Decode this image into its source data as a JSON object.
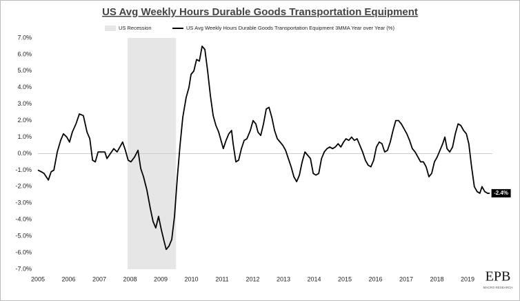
{
  "chart_data": {
    "type": "line",
    "title": "US Avg Weekly Hours Durable Goods Transportation Equipment",
    "x": [
      2005.0,
      2005.11,
      2005.2,
      2005.34,
      2005.43,
      2005.52,
      2005.63,
      2005.74,
      2005.83,
      2005.94,
      2006.03,
      2006.12,
      2006.24,
      2006.35,
      2006.48,
      2006.6,
      2006.69,
      2006.78,
      2006.87,
      2006.96,
      2007.09,
      2007.18,
      2007.25,
      2007.36,
      2007.47,
      2007.58,
      2007.7,
      2007.76,
      2007.85,
      2007.94,
      2008.03,
      2008.15,
      2008.26,
      2008.35,
      2008.44,
      2008.55,
      2008.66,
      2008.75,
      2008.84,
      2008.93,
      2009.02,
      2009.11,
      2009.18,
      2009.27,
      2009.36,
      2009.45,
      2009.54,
      2009.63,
      2009.72,
      2009.83,
      2009.92,
      2009.99,
      2010.08,
      2010.17,
      2010.26,
      2010.35,
      2010.44,
      2010.53,
      2010.62,
      2010.71,
      2010.8,
      2010.89,
      2010.98,
      2011.04,
      2011.13,
      2011.22,
      2011.31,
      2011.36,
      2011.45,
      2011.54,
      2011.63,
      2011.72,
      2011.81,
      2011.92,
      2012.01,
      2012.1,
      2012.17,
      2012.26,
      2012.35,
      2012.44,
      2012.53,
      2012.62,
      2012.71,
      2012.8,
      2012.89,
      2012.98,
      2013.07,
      2013.16,
      2013.25,
      2013.34,
      2013.43,
      2013.52,
      2013.61,
      2013.7,
      2013.79,
      2013.88,
      2013.97,
      2014.06,
      2014.15,
      2014.24,
      2014.33,
      2014.42,
      2014.51,
      2014.6,
      2014.69,
      2014.78,
      2014.87,
      2014.96,
      2015.04,
      2015.13,
      2015.22,
      2015.31,
      2015.4,
      2015.49,
      2015.58,
      2015.67,
      2015.76,
      2015.85,
      2015.94,
      2016.03,
      2016.12,
      2016.21,
      2016.3,
      2016.39,
      2016.48,
      2016.57,
      2016.66,
      2016.75,
      2016.84,
      2016.93,
      2017.02,
      2017.11,
      2017.2,
      2017.29,
      2017.38,
      2017.47,
      2017.56,
      2017.65,
      2017.74,
      2017.83,
      2017.92,
      2018.01,
      2018.1,
      2018.19,
      2018.26,
      2018.33,
      2018.42,
      2018.51,
      2018.6,
      2018.69,
      2018.78,
      2018.87,
      2018.96,
      2019.04,
      2019.13,
      2019.22,
      2019.31,
      2019.4,
      2019.47,
      2019.56,
      2019.65,
      2019.72
    ],
    "series": [
      {
        "name": "US Avg Weekly Hours Durable Goods Transportation Equipment 3MMA Year over Year (%)",
        "color": "#000000",
        "values": [
          -1.0,
          -1.1,
          -1.2,
          -1.6,
          -1.1,
          -1.0,
          0.1,
          0.8,
          1.2,
          1.0,
          0.7,
          1.3,
          1.8,
          2.4,
          2.3,
          1.3,
          0.9,
          -0.4,
          -0.5,
          0.1,
          0.1,
          0.1,
          -0.3,
          0.0,
          0.3,
          0.1,
          0.5,
          0.7,
          0.2,
          -0.4,
          -0.5,
          -0.2,
          0.2,
          -0.9,
          -1.4,
          -2.2,
          -3.3,
          -4.1,
          -4.5,
          -3.8,
          -4.6,
          -5.3,
          -5.8,
          -5.6,
          -5.2,
          -3.8,
          -1.5,
          0.5,
          2.2,
          3.4,
          4.0,
          4.8,
          5.0,
          5.7,
          5.6,
          6.5,
          6.3,
          5.0,
          3.5,
          2.3,
          1.7,
          1.3,
          0.7,
          0.3,
          0.8,
          1.2,
          1.4,
          0.6,
          -0.5,
          -0.4,
          0.3,
          0.8,
          0.9,
          1.4,
          2.0,
          1.8,
          1.3,
          1.1,
          1.8,
          2.7,
          2.8,
          2.2,
          1.4,
          0.9,
          0.7,
          0.5,
          0.2,
          -0.3,
          -0.8,
          -1.4,
          -1.7,
          -1.3,
          -0.5,
          0.1,
          -0.1,
          -0.3,
          -1.2,
          -1.3,
          -1.2,
          -0.3,
          0.1,
          0.3,
          0.4,
          0.3,
          0.4,
          0.6,
          0.4,
          0.7,
          0.9,
          0.8,
          1.0,
          0.8,
          0.9,
          0.5,
          0.1,
          -0.4,
          -0.7,
          -0.8,
          -0.4,
          0.4,
          0.7,
          0.6,
          0.1,
          0.2,
          0.7,
          1.4,
          2.0,
          2.0,
          1.8,
          1.5,
          1.2,
          0.8,
          0.3,
          0.1,
          -0.2,
          -0.5,
          -0.5,
          -0.8,
          -1.4,
          -1.2,
          -0.5,
          -0.2,
          0.2,
          0.6,
          1.0,
          0.3,
          0.1,
          0.4,
          1.2,
          1.8,
          1.7,
          1.4,
          1.2,
          0.6,
          -0.8,
          -2.0,
          -2.3,
          -2.4,
          -2.0,
          -2.3,
          -2.4,
          -2.4
        ]
      }
    ],
    "shaded_regions": [
      {
        "name": "US Recession",
        "start": 2007.92,
        "end": 2009.5,
        "color": "#e6e6e6"
      }
    ],
    "annotation": "-2.4%",
    "xlim": [
      2005,
      2019.8
    ],
    "xticks": [
      2005,
      2006,
      2007,
      2008,
      2009,
      2010,
      2011,
      2012,
      2013,
      2014,
      2015,
      2016,
      2017,
      2018,
      2019
    ],
    "ylim": [
      -7,
      7
    ],
    "yticks": [
      {
        "value": 7,
        "label": "7.0%"
      },
      {
        "value": 6,
        "label": "6.0%"
      },
      {
        "value": 5,
        "label": "5.0%"
      },
      {
        "value": 4,
        "label": "4.0%"
      },
      {
        "value": 3,
        "label": "3.0%"
      },
      {
        "value": 2,
        "label": "2.0%"
      },
      {
        "value": 1,
        "label": "1.0%"
      },
      {
        "value": 0,
        "label": "0.0%"
      },
      {
        "value": -1,
        "label": "-1.0%"
      },
      {
        "value": -2,
        "label": "-2.0%"
      },
      {
        "value": -3,
        "label": "-3.0%"
      },
      {
        "value": -4,
        "label": "-4.0%"
      },
      {
        "value": -5,
        "label": "-5.0%"
      },
      {
        "value": -6,
        "label": "-6.0%"
      },
      {
        "value": -7,
        "label": "-7.0%"
      }
    ],
    "zero_line": true,
    "logo": {
      "text": "EPB",
      "subtitle": "MACRO RESEARCH"
    }
  }
}
